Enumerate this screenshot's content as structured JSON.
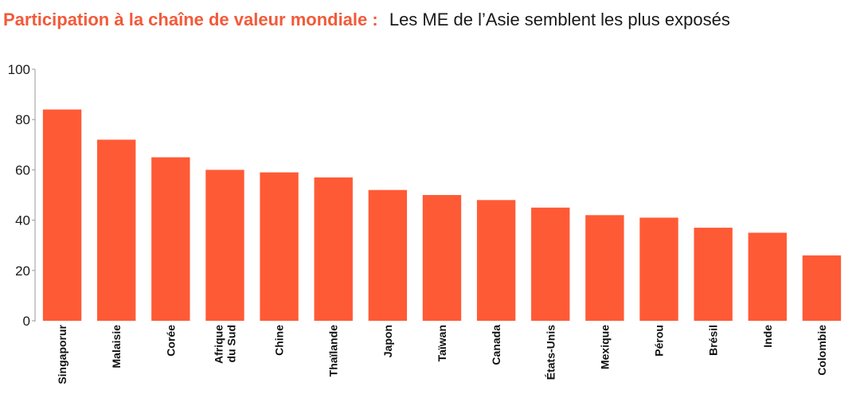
{
  "title": {
    "main": "Participation à la chaîne de valeur mondiale :",
    "sub": "Les ME de l’Asie semblent les plus exposés"
  },
  "colors": {
    "bar": "#ff5a36",
    "axis": "#999999",
    "title": "#f25a3a"
  },
  "chart_data": {
    "type": "bar",
    "title": "Participation à la chaîne de valeur mondiale :",
    "subtitle": "Les ME de l’Asie semblent les plus exposés",
    "xlabel": "",
    "ylabel": "",
    "ylim": [
      0,
      100
    ],
    "yticks": [
      0,
      20,
      40,
      60,
      80,
      100
    ],
    "grid": false,
    "categories": [
      [
        "Singaporur"
      ],
      [
        "Malaisie"
      ],
      [
        "Corée"
      ],
      [
        "Afrique",
        "du Sud"
      ],
      [
        "Chine"
      ],
      [
        "Thaïlande"
      ],
      [
        "Japon"
      ],
      [
        "Taïwan"
      ],
      [
        "Canada"
      ],
      [
        "États-Unis"
      ],
      [
        "Mexique"
      ],
      [
        "Pérou"
      ],
      [
        "Brésil"
      ],
      [
        "Inde"
      ],
      [
        "Colombie"
      ]
    ],
    "values": [
      84,
      72,
      65,
      60,
      59,
      57,
      52,
      50,
      48,
      45,
      42,
      41,
      37,
      35,
      26
    ]
  }
}
